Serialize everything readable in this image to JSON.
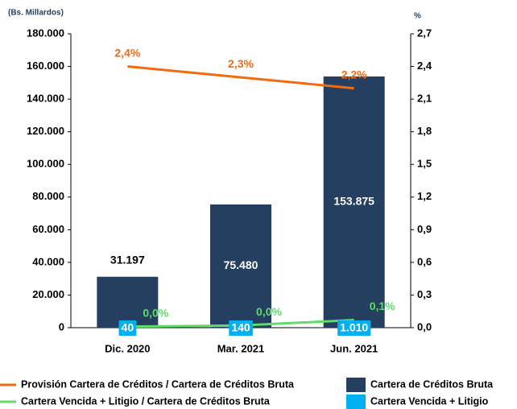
{
  "chart_data": {
    "type": "bar",
    "y_unit_label": "(Bs. Millardos)",
    "y2_unit_label": "%",
    "categories": [
      "Dic. 2020",
      "Mar. 2021",
      "Jun. 2021"
    ],
    "series": [
      {
        "name": "Provisión Cartera de Créditos / Cartera de Créditos Bruta",
        "type": "line",
        "axis": "y2",
        "color": "#f26b0f",
        "values": [
          2.4,
          2.3,
          2.2
        ],
        "value_labels": [
          "2,4%",
          "2,3%",
          "2,2%"
        ]
      },
      {
        "name": "Cartera Vencida + Litigio / Cartera de Créditos Bruta",
        "type": "line",
        "axis": "y2",
        "color": "#5fdc6a",
        "values": [
          0.01,
          0.02,
          0.07
        ],
        "value_labels": [
          "0,0%",
          "0,0%",
          "0,1%"
        ]
      },
      {
        "name": "Cartera de Créditos Bruta",
        "type": "bar",
        "color": "#243f60",
        "values": [
          31197,
          75480,
          153875
        ],
        "value_labels": [
          "31.197",
          "75.480",
          "153.875"
        ]
      },
      {
        "name": "Cartera Vencida + Litigio",
        "type": "bar",
        "color": "#00b0f0",
        "values": [
          40,
          140,
          1010
        ],
        "value_labels": [
          "40",
          "140",
          "1.010"
        ]
      }
    ],
    "ylim": [
      0,
      180000
    ],
    "yticks": [
      0,
      {
        "value": 20000,
        "label": "20.000"
      },
      {
        "value": 40000,
        "label": "40.000"
      },
      {
        "value": 60000,
        "label": "60.000"
      },
      {
        "value": 80000,
        "label": "80.000"
      },
      {
        "value": 100000,
        "label": "100.000"
      },
      {
        "value": 120000,
        "label": "120.000"
      },
      {
        "value": 140000,
        "label": "140.000"
      },
      {
        "value": 160000,
        "label": "160.000"
      },
      {
        "value": 180000,
        "label": "180.000"
      }
    ],
    "y2lim": [
      0,
      2.7
    ],
    "y2ticks": [
      {
        "value": 0,
        "label": "0,0"
      },
      {
        "value": 0.3,
        "label": "0,3"
      },
      {
        "value": 0.6,
        "label": "0,6"
      },
      {
        "value": 0.9,
        "label": "0,9"
      },
      {
        "value": 1.2,
        "label": "1,2"
      },
      {
        "value": 1.5,
        "label": "1,5"
      },
      {
        "value": 1.8,
        "label": "1,8"
      },
      {
        "value": 2.1,
        "label": "2,1"
      },
      {
        "value": 2.4,
        "label": "2,4"
      },
      {
        "value": 2.7,
        "label": "2,7"
      }
    ],
    "grid": false,
    "legend": "bottom"
  }
}
